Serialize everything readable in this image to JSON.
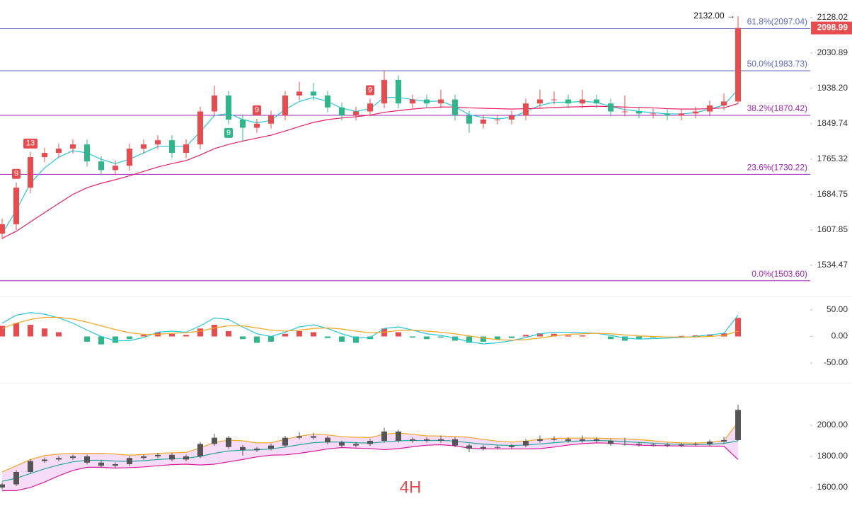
{
  "chart_data": [
    {
      "type": "candlestick",
      "log_scale": true,
      "ylim": [
        1474,
        2178
      ],
      "yticks": [
        {
          "value": 2128.02,
          "label": "2128.02"
        },
        2030.89,
        {
          "value": 1938.2,
          "label": "1938.20"
        },
        1849.74,
        1765.32,
        1684.75,
        1607.85,
        1534.47
      ],
      "up_color": "#e84c4f",
      "down_color": "#2eb88a",
      "candles": [
        [
          1600,
          1632,
          1588,
          1620
        ],
        [
          1620,
          1712,
          1608,
          1700
        ],
        [
          1700,
          1782,
          1688,
          1770
        ],
        [
          1770,
          1792,
          1758,
          1780
        ],
        [
          1780,
          1802,
          1768,
          1790
        ],
        [
          1790,
          1812,
          1778,
          1800
        ],
        [
          1800,
          1812,
          1748,
          1760
        ],
        [
          1760,
          1772,
          1728,
          1740
        ],
        [
          1740,
          1762,
          1728,
          1750
        ],
        [
          1750,
          1802,
          1738,
          1790
        ],
        [
          1790,
          1812,
          1778,
          1800
        ],
        [
          1800,
          1822,
          1788,
          1810
        ],
        [
          1810,
          1822,
          1768,
          1780
        ],
        [
          1780,
          1812,
          1768,
          1800
        ],
        [
          1800,
          1892,
          1788,
          1880
        ],
        [
          1880,
          1945,
          1868,
          1920
        ],
        [
          1920,
          1932,
          1848,
          1860
        ],
        [
          1860,
          1872,
          1805,
          1840
        ],
        [
          1840,
          1862,
          1828,
          1850
        ],
        [
          1850,
          1882,
          1838,
          1870
        ],
        [
          1870,
          1932,
          1858,
          1920
        ],
        [
          1920,
          1955,
          1908,
          1930
        ],
        [
          1930,
          1952,
          1908,
          1920
        ],
        [
          1920,
          1932,
          1878,
          1890
        ],
        [
          1890,
          1902,
          1858,
          1870
        ],
        [
          1870,
          1892,
          1858,
          1880
        ],
        [
          1880,
          1912,
          1868,
          1900
        ],
        [
          1900,
          1985,
          1888,
          1960
        ],
        [
          1960,
          1972,
          1888,
          1900
        ],
        [
          1900,
          1922,
          1888,
          1910
        ],
        [
          1910,
          1922,
          1888,
          1900
        ],
        [
          1900,
          1935,
          1888,
          1910
        ],
        [
          1910,
          1922,
          1858,
          1870
        ],
        [
          1870,
          1882,
          1828,
          1850
        ],
        [
          1850,
          1872,
          1838,
          1860
        ],
        [
          1860,
          1872,
          1848,
          1860
        ],
        [
          1860,
          1882,
          1848,
          1870
        ],
        [
          1870,
          1912,
          1858,
          1900
        ],
        [
          1900,
          1935,
          1888,
          1910
        ],
        [
          1910,
          1930,
          1898,
          1910
        ],
        [
          1910,
          1922,
          1888,
          1900
        ],
        [
          1900,
          1935,
          1888,
          1910
        ],
        [
          1910,
          1922,
          1888,
          1900
        ],
        [
          1900,
          1912,
          1868,
          1880
        ],
        [
          1880,
          1920,
          1868,
          1880
        ],
        [
          1880,
          1892,
          1863,
          1875
        ],
        [
          1875,
          1887,
          1863,
          1875
        ],
        [
          1875,
          1887,
          1858,
          1870
        ],
        [
          1870,
          1887,
          1858,
          1875
        ],
        [
          1875,
          1892,
          1863,
          1880
        ],
        [
          1880,
          1907,
          1868,
          1895
        ],
        [
          1895,
          1925,
          1883,
          1905
        ],
        [
          1905,
          2132,
          1900,
          2098.99
        ]
      ],
      "ma_lines": [
        {
          "color": "#26c6da",
          "values": [
            1600,
            1650,
            1710,
            1745,
            1770,
            1785,
            1780,
            1765,
            1755,
            1765,
            1780,
            1795,
            1795,
            1795,
            1830,
            1870,
            1875,
            1860,
            1852,
            1858,
            1885,
            1905,
            1915,
            1905,
            1888,
            1880,
            1887,
            1915,
            1915,
            1910,
            1905,
            1906,
            1892,
            1872,
            1865,
            1862,
            1865,
            1880,
            1895,
            1903,
            1903,
            1905,
            1903,
            1892,
            1885,
            1880,
            1877,
            1874,
            1874,
            1877,
            1886,
            1896,
            1935
          ]
        },
        {
          "color": "#e91e63",
          "values": [
            1590,
            1605,
            1625,
            1645,
            1665,
            1685,
            1700,
            1710,
            1718,
            1727,
            1737,
            1747,
            1755,
            1762,
            1775,
            1790,
            1800,
            1808,
            1815,
            1822,
            1832,
            1843,
            1853,
            1860,
            1864,
            1867,
            1871,
            1878,
            1882,
            1886,
            1889,
            1891,
            1891,
            1889,
            1888,
            1887,
            1886,
            1887,
            1888,
            1890,
            1891,
            1892,
            1893,
            1892,
            1891,
            1890,
            1889,
            1887,
            1886,
            1886,
            1887,
            1889,
            1900
          ]
        }
      ],
      "levels": [
        {
          "value": 2097.04,
          "label": "61.8%(2097.04)",
          "color": "#5c6bc0"
        },
        {
          "value": 1983.73,
          "label": "50.0%(1983.73)",
          "color": "#5c6bc0"
        },
        {
          "value": 1870.42,
          "label": "38.2%(1870.42)",
          "color": "#9c27b0"
        },
        {
          "value": 1730.22,
          "label": "23.6%(1730.22)",
          "color": "#9c27b0"
        },
        {
          "value": 1503.6,
          "label": "0.0%(1503.60)",
          "color": "#9c27b0"
        }
      ],
      "last_price": 2098.99,
      "high_annotation": {
        "value": 2132,
        "label": "2132.00 →"
      },
      "td": [
        {
          "label": "9",
          "color": "#e84c4f"
        },
        {
          "label": "13",
          "color": "#e84c4f"
        },
        {
          "label": "9",
          "color": "#2eb88a"
        },
        {
          "label": "9",
          "color": "#e84c4f"
        },
        {
          "label": "9",
          "color": "#e84c4f"
        }
      ]
    },
    {
      "type": "macd",
      "ylim": [
        -86,
        74
      ],
      "yticks": [
        {
          "value": 50,
          "label": "50.00"
        },
        {
          "value": 0,
          "label": "0.00"
        },
        {
          "value": -50,
          "label": "-50.00"
        }
      ],
      "hist": [
        20,
        25,
        22,
        15,
        8,
        0,
        -10,
        -15,
        -12,
        -5,
        3,
        8,
        5,
        3,
        15,
        22,
        10,
        -5,
        -12,
        -10,
        5,
        10,
        8,
        -3,
        -10,
        -12,
        -5,
        15,
        8,
        -2,
        -5,
        -2,
        -8,
        -12,
        -10,
        -6,
        -3,
        3,
        6,
        5,
        2,
        2,
        0,
        -5,
        -8,
        -4,
        -2,
        0,
        1,
        2,
        4,
        6,
        35
      ],
      "lines": [
        {
          "color": "#26c6da",
          "values": [
            25,
            40,
            45,
            42,
            35,
            25,
            12,
            0,
            -8,
            -8,
            -2,
            8,
            10,
            8,
            20,
            35,
            32,
            18,
            5,
            0,
            8,
            18,
            22,
            15,
            5,
            -3,
            -2,
            15,
            18,
            12,
            5,
            2,
            -3,
            -10,
            -14,
            -12,
            -8,
            -2,
            5,
            8,
            8,
            7,
            6,
            2,
            -3,
            -5,
            -4,
            -3,
            -2,
            0,
            3,
            6,
            40
          ]
        },
        {
          "color": "#f5a623",
          "values": [
            15,
            25,
            32,
            36,
            36,
            33,
            27,
            20,
            13,
            7,
            4,
            4,
            6,
            7,
            10,
            16,
            20,
            20,
            16,
            12,
            10,
            12,
            15,
            16,
            14,
            10,
            7,
            8,
            11,
            12,
            10,
            8,
            5,
            1,
            -3,
            -6,
            -7,
            -6,
            -3,
            1,
            4,
            5,
            6,
            5,
            3,
            1,
            0,
            -1,
            -1,
            -1,
            0,
            2,
            10
          ]
        }
      ]
    },
    {
      "type": "bollinger",
      "ylim": [
        1436,
        2255
      ],
      "yticks": [
        {
          "value": 2000,
          "label": "2000.00"
        },
        {
          "value": 1800,
          "label": "1800.00"
        },
        {
          "value": 1600,
          "label": "1600.00"
        }
      ],
      "upper": {
        "color": "#f5a623",
        "values": [
          1700,
          1740,
          1780,
          1805,
          1815,
          1820,
          1820,
          1820,
          1815,
          1808,
          1812,
          1820,
          1823,
          1826,
          1855,
          1890,
          1905,
          1900,
          1887,
          1888,
          1910,
          1930,
          1943,
          1938,
          1927,
          1923,
          1921,
          1943,
          1950,
          1942,
          1932,
          1931,
          1928,
          1923,
          1909,
          1898,
          1892,
          1898,
          1910,
          1916,
          1917,
          1918,
          1917,
          1915,
          1913,
          1908,
          1900,
          1892,
          1887,
          1886,
          1890,
          1901,
          2020
        ]
      },
      "middle": {
        "color": "#26a69a",
        "values": [
          1640,
          1660,
          1690,
          1720,
          1745,
          1765,
          1775,
          1775,
          1770,
          1768,
          1772,
          1780,
          1785,
          1788,
          1800,
          1820,
          1835,
          1840,
          1842,
          1848,
          1860,
          1875,
          1888,
          1893,
          1892,
          1888,
          1886,
          1893,
          1900,
          1902,
          1902,
          1903,
          1898,
          1888,
          1879,
          1873,
          1870,
          1873,
          1880,
          1888,
          1895,
          1900,
          1902,
          1900,
          1895,
          1890,
          1885,
          1880,
          1877,
          1876,
          1878,
          1883,
          1900
        ]
      },
      "lower": {
        "color": "#d81b9e",
        "values": [
          1580,
          1580,
          1600,
          1635,
          1675,
          1710,
          1730,
          1730,
          1725,
          1728,
          1732,
          1740,
          1747,
          1750,
          1745,
          1750,
          1765,
          1780,
          1797,
          1808,
          1810,
          1820,
          1833,
          1848,
          1857,
          1853,
          1851,
          1843,
          1850,
          1862,
          1872,
          1875,
          1868,
          1853,
          1849,
          1848,
          1848,
          1848,
          1850,
          1860,
          1873,
          1882,
          1887,
          1885,
          1877,
          1872,
          1870,
          1868,
          1867,
          1866,
          1866,
          1865,
          1780
        ]
      },
      "band_fill": "#f6dcf6",
      "watermark": "4H"
    }
  ]
}
